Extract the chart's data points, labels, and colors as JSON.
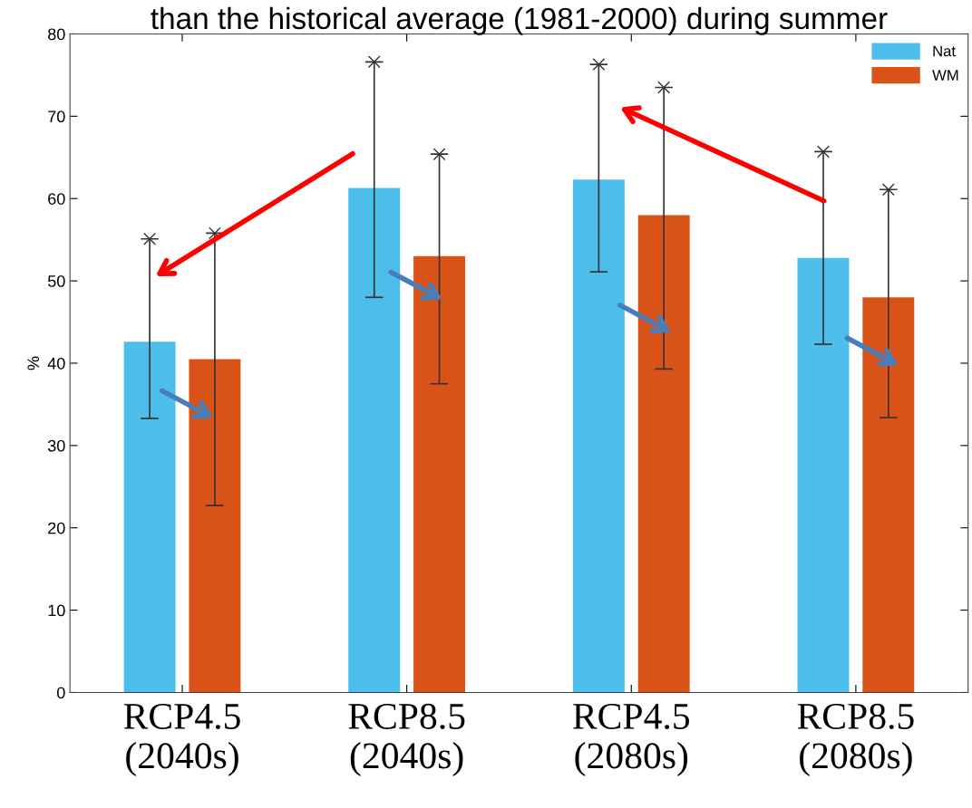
{
  "chart_data": {
    "type": "bar",
    "title": "than the historical average (1981-2000) during summer",
    "ylabel": "%",
    "categories": [
      "RCP4.5\n(2040s)",
      "RCP8.5\n(2040s)",
      "RCP4.5\n(2080s)",
      "RCP8.5\n(2080s)"
    ],
    "series": [
      {
        "name": "Nat",
        "color": "#4dbeeb",
        "values": [
          42.6,
          61.3,
          62.3,
          52.8
        ],
        "errors": [
          [
            33.3,
            55.1
          ],
          [
            48.0,
            76.6
          ],
          [
            51.1,
            76.3
          ],
          [
            42.3,
            65.7
          ]
        ]
      },
      {
        "name": "WM",
        "color": "#d95319",
        "values": [
          40.5,
          53.0,
          58.0,
          48.0
        ],
        "errors": [
          [
            22.7,
            55.8
          ],
          [
            37.5,
            65.4
          ],
          [
            39.3,
            73.5
          ],
          [
            33.4,
            61.1
          ]
        ]
      }
    ],
    "ylim": [
      0,
      80
    ],
    "yticks": [
      0,
      10,
      20,
      30,
      40,
      50,
      60,
      70,
      80
    ],
    "grid": false,
    "legend": "top right"
  }
}
